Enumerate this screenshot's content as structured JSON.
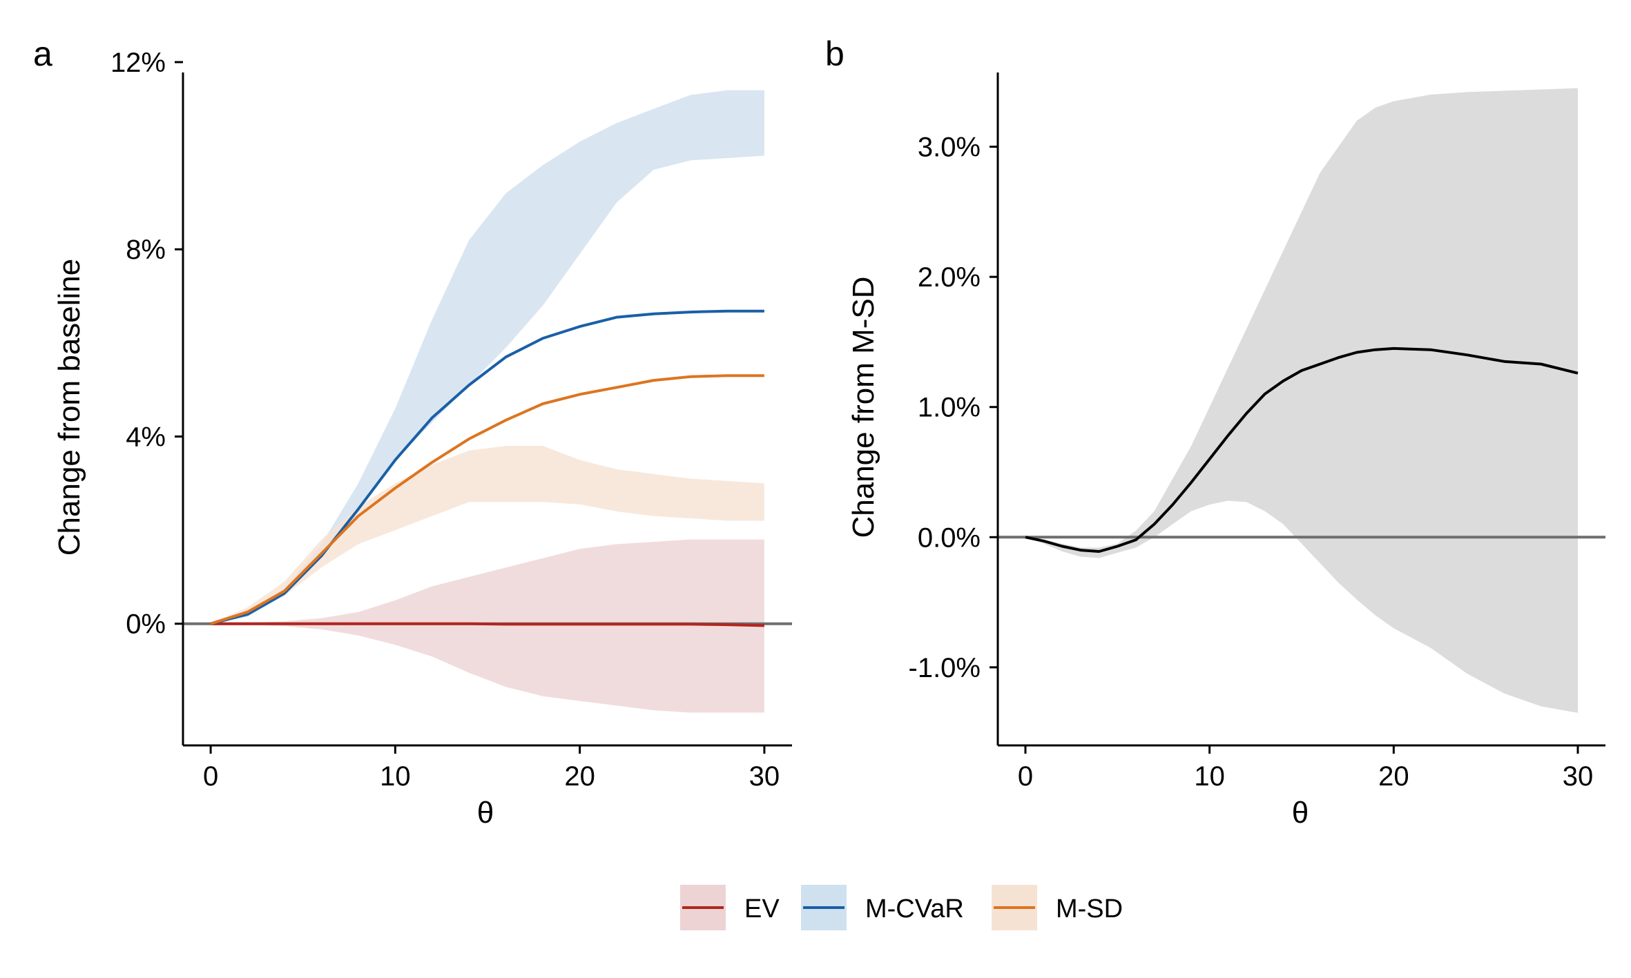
{
  "legend": {
    "items": [
      {
        "label": "EV",
        "line_color": "#B2261F",
        "fill_color": "#EDD3D4"
      },
      {
        "label": "M-CVaR",
        "line_color": "#1A5FA8",
        "fill_color": "#CFE0EE"
      },
      {
        "label": "M-SD",
        "line_color": "#DC7520",
        "fill_color": "#F6E2D3"
      }
    ]
  },
  "chart_data": [
    {
      "panel_label": "a",
      "type": "area",
      "xlabel": "θ",
      "ylabel": "Change from baseline",
      "xlim": [
        -1.5,
        31.5
      ],
      "ylim": [
        -2.6,
        12
      ],
      "x_ticks": [
        0,
        10,
        20,
        30
      ],
      "x_tick_labels": [
        "0",
        "10",
        "20",
        "30"
      ],
      "y_ticks": [
        0,
        4,
        8,
        12
      ],
      "y_tick_labels": [
        "0%",
        "4%",
        "8%",
        "12%"
      ],
      "reference_line": {
        "y": 0,
        "color": "#6E6E6E"
      },
      "x": [
        0,
        2,
        4,
        6,
        8,
        10,
        12,
        14,
        16,
        18,
        20,
        22,
        24,
        26,
        28,
        30
      ],
      "series": [
        {
          "name": "EV",
          "line_color": "#B2261F",
          "band_color": "#EDD3D4",
          "values": [
            0,
            0,
            0,
            0,
            0,
            0,
            0,
            0,
            -0.01,
            -0.01,
            -0.01,
            -0.01,
            -0.01,
            -0.01,
            -0.02,
            -0.04
          ],
          "lower": [
            0,
            -0.02,
            -0.05,
            -0.12,
            -0.25,
            -0.45,
            -0.7,
            -1.05,
            -1.35,
            -1.55,
            -1.65,
            -1.75,
            -1.85,
            -1.9,
            -1.9,
            -1.9
          ],
          "upper": [
            0,
            0.02,
            0.05,
            0.12,
            0.25,
            0.5,
            0.8,
            1.0,
            1.2,
            1.4,
            1.6,
            1.7,
            1.75,
            1.8,
            1.8,
            1.8
          ]
        },
        {
          "name": "M-CVaR",
          "line_color": "#1A5FA8",
          "band_color": "#CFE0EE",
          "values": [
            0,
            0.2,
            0.65,
            1.45,
            2.45,
            3.5,
            4.4,
            5.1,
            5.7,
            6.1,
            6.35,
            6.55,
            6.62,
            6.66,
            6.68,
            6.68
          ],
          "lower": [
            0,
            0.15,
            0.6,
            1.45,
            2.5,
            3.5,
            4.3,
            5.1,
            5.9,
            6.8,
            7.9,
            9.0,
            9.7,
            9.9,
            9.95,
            10.0
          ],
          "upper": [
            0,
            0.2,
            0.75,
            1.7,
            3.0,
            4.6,
            6.5,
            8.2,
            9.2,
            9.8,
            10.3,
            10.7,
            11.0,
            11.3,
            11.4,
            11.4
          ]
        },
        {
          "name": "M-SD",
          "line_color": "#DC7520",
          "band_color": "#F6E2D3",
          "values": [
            0,
            0.25,
            0.7,
            1.5,
            2.3,
            2.9,
            3.45,
            3.95,
            4.35,
            4.7,
            4.9,
            5.05,
            5.2,
            5.28,
            5.3,
            5.3
          ],
          "lower": [
            0,
            0.2,
            0.6,
            1.2,
            1.7,
            2.0,
            2.3,
            2.6,
            2.6,
            2.6,
            2.55,
            2.4,
            2.3,
            2.25,
            2.2,
            2.2
          ],
          "upper": [
            0,
            0.35,
            0.9,
            1.8,
            2.5,
            3.0,
            3.4,
            3.7,
            3.8,
            3.8,
            3.5,
            3.3,
            3.2,
            3.1,
            3.05,
            3.0
          ]
        }
      ]
    },
    {
      "panel_label": "b",
      "type": "area",
      "xlabel": "θ",
      "ylabel": "Change from M-SD",
      "xlim": [
        -1.5,
        31.5
      ],
      "ylim": [
        -1.6,
        3.65
      ],
      "x_ticks": [
        0,
        10,
        20,
        30
      ],
      "x_tick_labels": [
        "0",
        "10",
        "20",
        "30"
      ],
      "y_ticks": [
        -1,
        0,
        1,
        2,
        3
      ],
      "y_tick_labels": [
        "-1.0%",
        "0.0%",
        "1.0%",
        "2.0%",
        "3.0%"
      ],
      "reference_line": {
        "y": 0,
        "color": "#6E6E6E"
      },
      "x": [
        0,
        1,
        2,
        3,
        4,
        5,
        6,
        7,
        8,
        9,
        10,
        11,
        12,
        13,
        14,
        15,
        16,
        17,
        18,
        19,
        20,
        22,
        24,
        26,
        28,
        30
      ],
      "series": [
        {
          "name": "",
          "line_color": "#000000",
          "band_color": "#D3D3D3",
          "values": [
            0,
            -0.03,
            -0.07,
            -0.1,
            -0.11,
            -0.07,
            -0.02,
            0.1,
            0.25,
            0.42,
            0.6,
            0.78,
            0.95,
            1.1,
            1.2,
            1.28,
            1.33,
            1.38,
            1.42,
            1.44,
            1.45,
            1.44,
            1.4,
            1.35,
            1.33,
            1.26
          ],
          "lower": [
            0,
            -0.05,
            -0.11,
            -0.15,
            -0.16,
            -0.12,
            -0.08,
            0.0,
            0.1,
            0.2,
            0.25,
            0.28,
            0.27,
            0.2,
            0.1,
            -0.05,
            -0.2,
            -0.35,
            -0.48,
            -0.6,
            -0.7,
            -0.85,
            -1.05,
            -1.2,
            -1.3,
            -1.35
          ],
          "upper": [
            0,
            -0.02,
            -0.05,
            -0.08,
            -0.08,
            -0.05,
            0.05,
            0.2,
            0.45,
            0.7,
            1.0,
            1.3,
            1.6,
            1.9,
            2.2,
            2.5,
            2.8,
            3.0,
            3.2,
            3.3,
            3.35,
            3.4,
            3.42,
            3.43,
            3.44,
            3.45
          ]
        }
      ]
    }
  ]
}
